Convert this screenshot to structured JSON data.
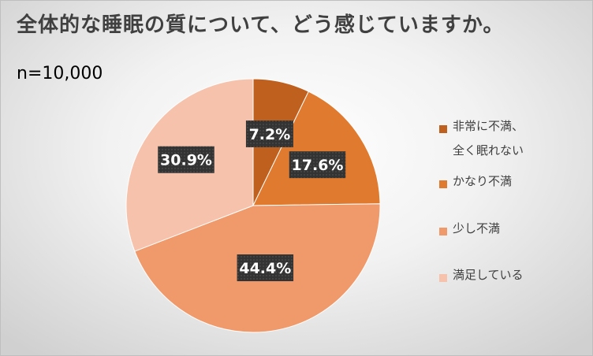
{
  "title": "全体的な睡眠の質について、どう感じていますか。",
  "sample_size": "n=10,000",
  "chart_data": {
    "type": "pie",
    "start_angle_deg": 0,
    "direction": "clockwise",
    "legend_position": "right",
    "slices": [
      {
        "label": "非常に不満、\n全く眠れない",
        "value": 7.2,
        "data_label": "7.2%",
        "color": "#c0601f"
      },
      {
        "label": "かなり不満",
        "value": 17.6,
        "data_label": "17.6%",
        "color": "#e07a2e"
      },
      {
        "label": "少し不満",
        "value": 44.4,
        "data_label": "44.4%",
        "color": "#f09a6c"
      },
      {
        "label": "満足している",
        "value": 30.9,
        "data_label": "30.9%",
        "color": "#f6c2ac"
      }
    ],
    "label_style": {
      "background": "#333333",
      "text_color": "#ffffff"
    }
  }
}
